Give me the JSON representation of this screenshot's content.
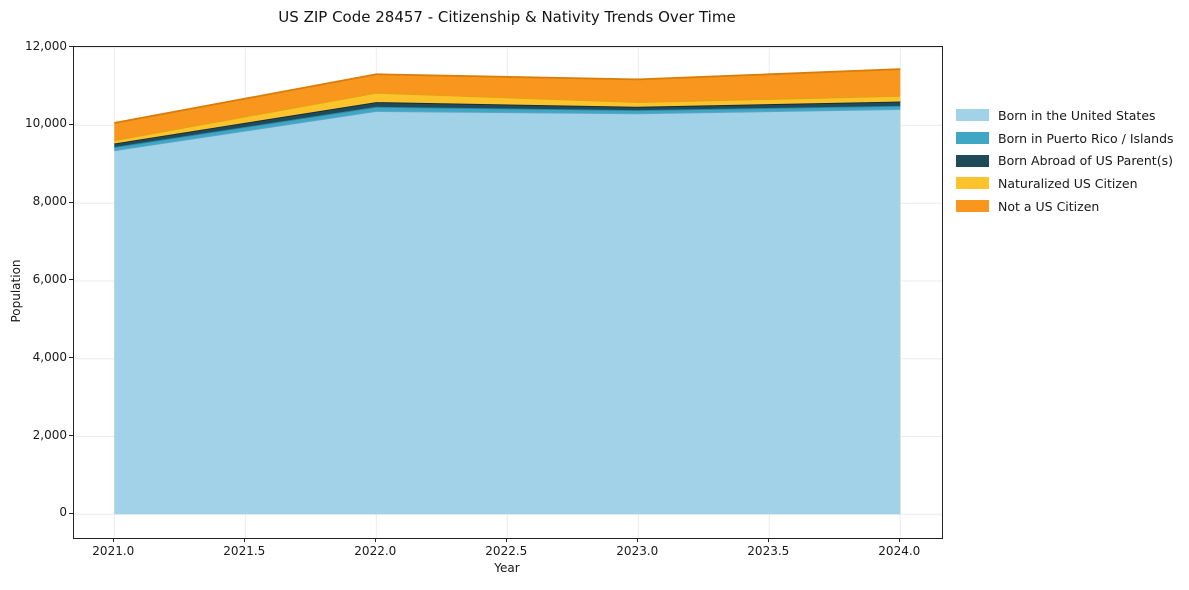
{
  "title": "US ZIP Code 28457 - Citizenship & Nativity Trends Over Time",
  "xlabel": "Year",
  "ylabel": "Population",
  "axes": {
    "x_tick_labels": [
      "2021.0",
      "2021.5",
      "2022.0",
      "2022.5",
      "2023.0",
      "2023.5",
      "2024.0"
    ],
    "y_tick_labels": [
      "0",
      "2,000",
      "4,000",
      "6,000",
      "8,000",
      "10,000",
      "12,000"
    ]
  },
  "chart_data": {
    "type": "area",
    "stacked": true,
    "title": "US ZIP Code 28457 - Citizenship & Nativity Trends Over Time",
    "xlabel": "Year",
    "ylabel": "Population",
    "x": [
      2021,
      2022,
      2023,
      2024
    ],
    "series": [
      {
        "name": "Born in the United States",
        "values": [
          9360,
          10370,
          10310,
          10420
        ],
        "color": "#A2D2E7",
        "edge_color": "#5FA5CC"
      },
      {
        "name": "Born in Puerto Rico / Islands",
        "values": [
          85,
          110,
          85,
          85
        ],
        "color": "#3FA7C4",
        "edge_color": "#2C86A0"
      },
      {
        "name": "Born Abroad of US Parent(s)",
        "values": [
          90,
          120,
          85,
          110
        ],
        "color": "#1F4A5A",
        "edge_color": "#132E39"
      },
      {
        "name": "Naturalized US Citizen",
        "values": [
          85,
          240,
          120,
          145
        ],
        "color": "#FDC32C",
        "edge_color": "#E0A312"
      },
      {
        "name": "Not a US Citizen",
        "values": [
          445,
          475,
          585,
          690
        ],
        "color": "#F8961D",
        "edge_color": "#D97C08"
      }
    ],
    "stack_totals": [
      10065,
      11315,
      11185,
      11450
    ],
    "xlim": [
      2020.85,
      2024.16
    ],
    "ylim": [
      -610,
      12000
    ],
    "grid": true,
    "grid_color": "#ebebeb",
    "legend_position": "right-outside"
  }
}
